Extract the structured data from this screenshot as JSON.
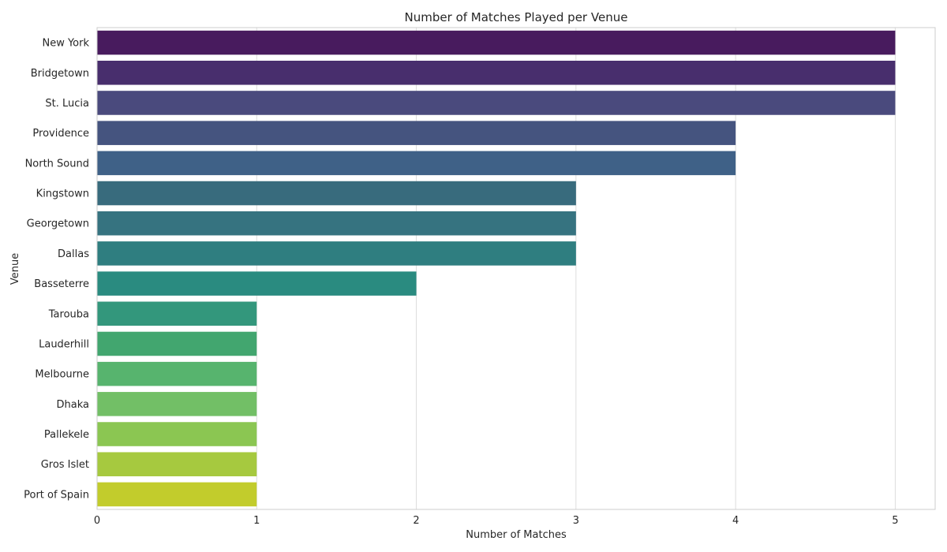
{
  "chart_data": {
    "type": "bar",
    "orientation": "horizontal",
    "title": "Number of Matches Played per Venue",
    "xlabel": "Number of Matches",
    "ylabel": "Venue",
    "xlim": [
      0,
      5.25
    ],
    "xticks": [
      0,
      1,
      2,
      3,
      4,
      5
    ],
    "grid": true,
    "categories": [
      "New York",
      "Bridgetown",
      "St. Lucia",
      "Providence",
      "North Sound",
      "Kingstown",
      "Georgetown",
      "Dallas",
      "Basseterre",
      "Tarouba",
      "Lauderhill",
      "Melbourne",
      "Dhaka",
      "Pallekele",
      "Gros Islet",
      "Port of Spain"
    ],
    "values": [
      5,
      5,
      5,
      4,
      4,
      3,
      3,
      3,
      2,
      1,
      1,
      1,
      1,
      1,
      1,
      1
    ],
    "colors": [
      "#481b5e",
      "#482e6d",
      "#4a4a7d",
      "#45547f",
      "#3f6187",
      "#386b7d",
      "#367380",
      "#2f7e80",
      "#2a8b80",
      "#33977c",
      "#42a66f",
      "#57b46e",
      "#72bf66",
      "#8bc652",
      "#a6c93f",
      "#c2cc2c"
    ]
  }
}
